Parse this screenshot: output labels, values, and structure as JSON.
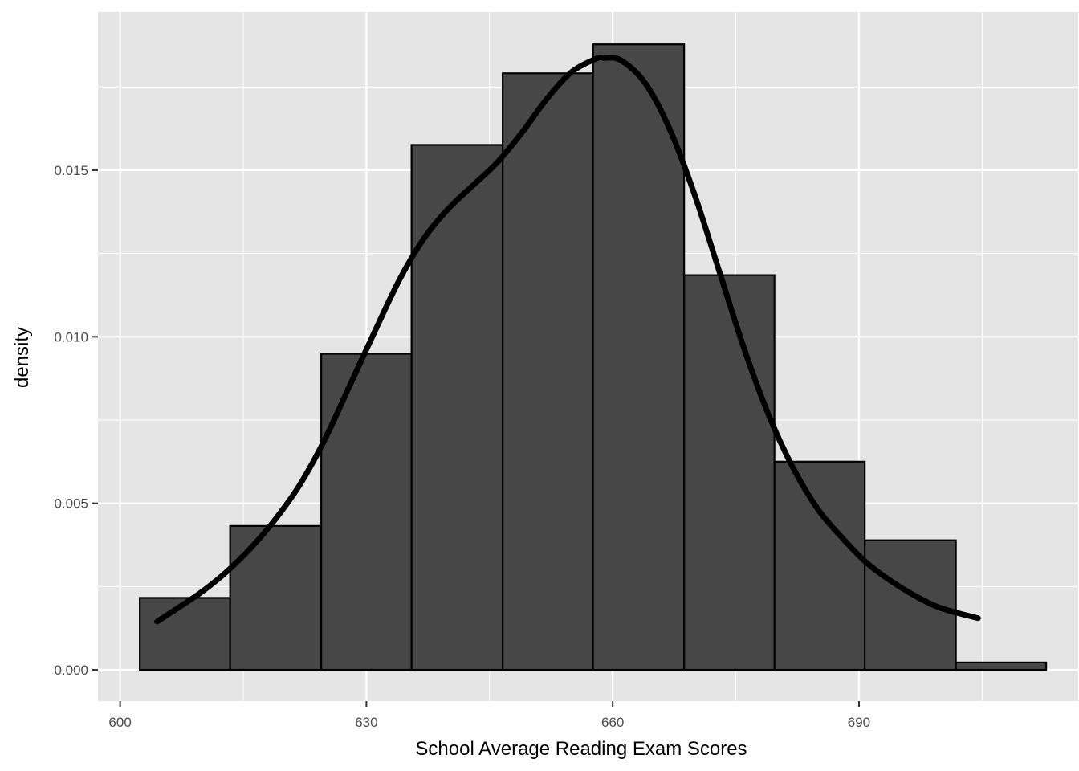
{
  "chart_data": {
    "type": "bar",
    "subtype": "histogram-with-density",
    "xlabel": "School Average Reading Exam Scores",
    "ylabel": "density",
    "xlim": [
      597.3,
      716.7
    ],
    "ylim": [
      -0.00094,
      0.01975
    ],
    "x_ticks": [
      600,
      630,
      660,
      690
    ],
    "x_tick_labels": [
      "600",
      "630",
      "660",
      "690"
    ],
    "y_ticks": [
      0.0,
      0.005,
      0.01,
      0.015
    ],
    "y_tick_labels": [
      "0.000",
      "0.005",
      "0.010",
      "0.015"
    ],
    "grid": true,
    "bins": [
      {
        "x0": 602.4,
        "x1": 613.4,
        "density": 0.00216
      },
      {
        "x0": 613.4,
        "x1": 624.5,
        "density": 0.00432
      },
      {
        "x0": 624.5,
        "x1": 635.5,
        "density": 0.00949
      },
      {
        "x0": 635.5,
        "x1": 646.6,
        "density": 0.01576
      },
      {
        "x0": 646.6,
        "x1": 657.6,
        "density": 0.01791
      },
      {
        "x0": 657.6,
        "x1": 668.7,
        "density": 0.01878
      },
      {
        "x0": 668.7,
        "x1": 679.7,
        "density": 0.01185
      },
      {
        "x0": 679.7,
        "x1": 690.7,
        "density": 0.00625
      },
      {
        "x0": 690.7,
        "x1": 701.8,
        "density": 0.00389
      },
      {
        "x0": 701.8,
        "x1": 712.8,
        "density": 0.00022
      }
    ],
    "density_curve": {
      "x": [
        604.5,
        607,
        610,
        613,
        616,
        619,
        622,
        625,
        628,
        631,
        634,
        637,
        640,
        643,
        646,
        649,
        652,
        655,
        658,
        659,
        661,
        664,
        667,
        670,
        673,
        676,
        679,
        682,
        685,
        688,
        691,
        694,
        697,
        700,
        704.5
      ],
      "y": [
        0.00145,
        0.00185,
        0.00235,
        0.00295,
        0.00368,
        0.00455,
        0.0056,
        0.00695,
        0.00855,
        0.01015,
        0.0117,
        0.01295,
        0.01385,
        0.01455,
        0.01525,
        0.01615,
        0.01715,
        0.01795,
        0.01835,
        0.01837,
        0.0183,
        0.0176,
        0.0162,
        0.01425,
        0.01195,
        0.00965,
        0.00765,
        0.00605,
        0.00482,
        0.00395,
        0.0032,
        0.00265,
        0.0022,
        0.00185,
        0.00155
      ]
    },
    "colors": {
      "panel_background": "#e5e5e5",
      "grid": "#ffffff",
      "bar_fill": "#474747",
      "bar_stroke": "#000000",
      "curve": "#000000",
      "tick_text": "#4d4d4d",
      "tick_mark": "#333333"
    }
  }
}
